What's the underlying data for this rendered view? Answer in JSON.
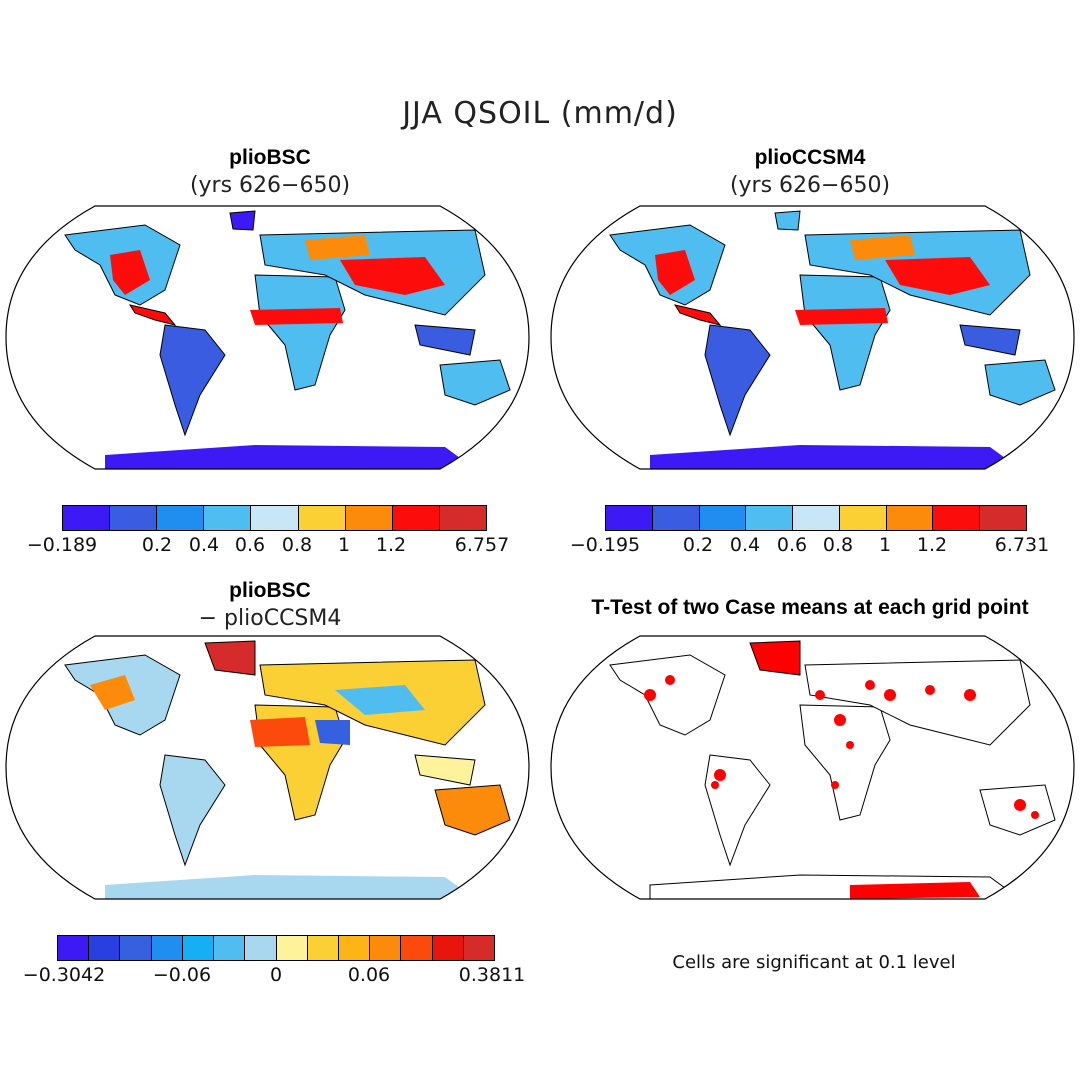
{
  "figure": {
    "title": "JJA QSOIL (mm/d)",
    "note": "Cells are significant at 0.1 level"
  },
  "panels": [
    {
      "title": "plioBSC",
      "subtitle": "(yrs 626−650)"
    },
    {
      "title": "plioCCSM4",
      "subtitle": "(yrs 626−650)"
    },
    {
      "title": "plioBSC",
      "subtitle": "− plioCCSM4"
    },
    {
      "title": "T-Test of two Case means at each grid point",
      "subtitle": ""
    }
  ],
  "colorbars": [
    {
      "name": "plioBSC",
      "colors": [
        "#3c19f5",
        "#3a5ce0",
        "#1f8ef0",
        "#4fbdf0",
        "#c8e6f5",
        "#fbd034",
        "#fc8b0b",
        "#fc0d0c",
        "#d52b2b"
      ],
      "labels": [
        "−0.189",
        "0.2",
        "0.4",
        "0.6",
        "0.8",
        "1",
        "1.2",
        "6.757"
      ]
    },
    {
      "name": "plioCCSM4",
      "colors": [
        "#3c19f5",
        "#3a5ce0",
        "#1f8ef0",
        "#4fbdf0",
        "#c8e6f5",
        "#fbd034",
        "#fc8b0b",
        "#fc0d0c",
        "#d52b2b"
      ],
      "labels": [
        "−0.195",
        "0.2",
        "0.4",
        "0.6",
        "0.8",
        "1",
        "1.2",
        "6.731"
      ]
    },
    {
      "name": "difference",
      "colors": [
        "#3c19f5",
        "#2a3fe0",
        "#3560e0",
        "#1f8ef0",
        "#16aef5",
        "#4fbdf0",
        "#a8d8f0",
        "#fef29a",
        "#fbd034",
        "#fcb515",
        "#fc8b0b",
        "#fc4a0c",
        "#e8150e",
        "#d52b2b"
      ],
      "labels": [
        "−0.3042",
        "−0.06",
        "0",
        "0.06",
        "0.3811"
      ]
    }
  ],
  "legend_colors": {
    "significant": "#ff0000",
    "land_outline": "#000000"
  }
}
